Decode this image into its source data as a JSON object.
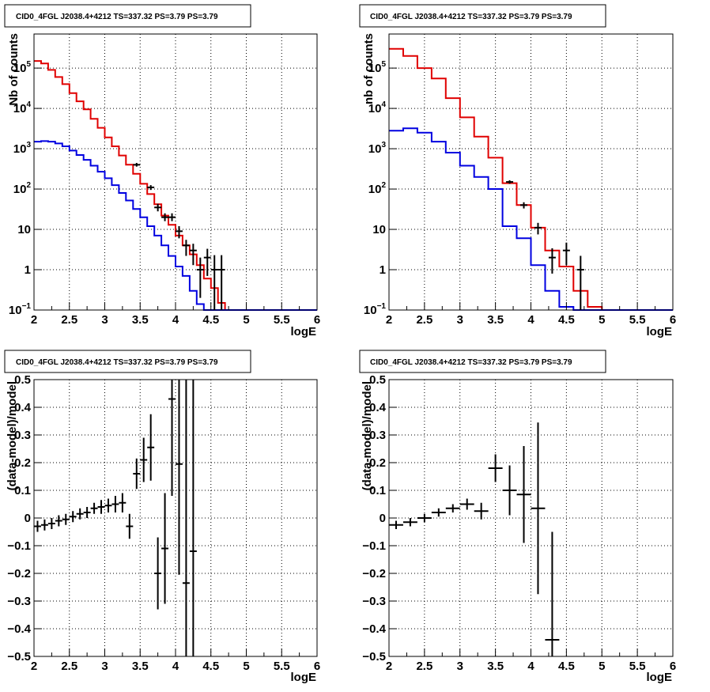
{
  "chart_data": [
    {
      "id": "counts-left",
      "type": "line",
      "title": "CID0_4FGL J2038.4+4212 TS=337.32 PS=3.79 PS=3.79",
      "xlabel": "logE",
      "ylabel": "Nb of counts",
      "xlim": [
        2,
        6
      ],
      "ylim": [
        0.1,
        700000
      ],
      "ylog": true,
      "grid": true,
      "x_ticks": [
        "2",
        "2.5",
        "3",
        "3.5",
        "4",
        "4.5",
        "5",
        "5.5",
        "6"
      ],
      "y_ticks": [
        {
          "v": 0.1,
          "b": "10",
          "e": "−1"
        },
        {
          "v": 1,
          "b": "1",
          "e": ""
        },
        {
          "v": 10,
          "b": "10",
          "e": ""
        },
        {
          "v": 100,
          "b": "10",
          "e": "2"
        },
        {
          "v": 1000,
          "b": "10",
          "e": "3"
        },
        {
          "v": 10000,
          "b": "10",
          "e": "4"
        },
        {
          "v": 100000,
          "b": "10",
          "e": "5"
        }
      ],
      "bin_edges": [
        2.0,
        2.1,
        2.2,
        2.3,
        2.4,
        2.5,
        2.6,
        2.7,
        2.8,
        2.9,
        3.0,
        3.1,
        3.2,
        3.3,
        3.4,
        3.5,
        3.6,
        3.7,
        3.8,
        3.9,
        4.0,
        4.1,
        4.2,
        4.3,
        4.4,
        4.5,
        4.6,
        4.7,
        4.8,
        4.9,
        5.0,
        5.1,
        5.2,
        5.3,
        5.4,
        5.5,
        5.6,
        5.7,
        5.8,
        5.9,
        6.0
      ],
      "series": [
        {
          "color": "#e00000",
          "values": [
            150000,
            130000,
            90000,
            60000,
            40000,
            24000,
            15000,
            9500,
            5500,
            3300,
            1900,
            1150,
            680,
            400,
            240,
            135,
            75,
            42,
            22,
            13,
            7,
            4,
            2.4,
            1.3,
            0.6,
            0.35,
            0.15,
            0.05,
            0.05,
            0.05,
            0.05,
            0.05,
            0.05,
            0.05,
            0.05,
            0.05,
            0.05,
            0.05,
            0.05,
            0.05
          ]
        },
        {
          "color": "#0000e0",
          "values": [
            1500,
            1550,
            1500,
            1350,
            1150,
            900,
            700,
            530,
            380,
            270,
            185,
            125,
            80,
            52,
            32,
            20,
            12,
            7,
            4,
            2.2,
            1.2,
            0.7,
            0.3,
            0.14,
            0.05,
            0.05,
            0.05,
            0.05,
            0.05,
            0.05,
            0.05,
            0.05,
            0.05,
            0.05,
            0.05,
            0.05,
            0.05,
            0.05,
            0.05,
            0.05
          ]
        }
      ],
      "points": [
        {
          "x": 3.45,
          "y": 400,
          "lo": 360,
          "hi": 445
        },
        {
          "x": 3.65,
          "y": 110,
          "lo": 95,
          "hi": 125
        },
        {
          "x": 3.75,
          "y": 35,
          "lo": 28,
          "hi": 43
        },
        {
          "x": 3.85,
          "y": 20,
          "lo": 16,
          "hi": 25
        },
        {
          "x": 3.95,
          "y": 20,
          "lo": 16,
          "hi": 25
        },
        {
          "x": 4.05,
          "y": 9,
          "lo": 6,
          "hi": 12
        },
        {
          "x": 4.15,
          "y": 4,
          "lo": 2.2,
          "hi": 5.5
        },
        {
          "x": 4.25,
          "y": 3,
          "lo": 1.3,
          "hi": 4.4
        },
        {
          "x": 4.35,
          "y": 1,
          "lo": 0.2,
          "hi": 2
        },
        {
          "x": 4.45,
          "y": 2,
          "lo": 0.7,
          "hi": 3.3
        },
        {
          "x": 4.55,
          "y": 1,
          "lo": 0.1,
          "hi": 2.3
        },
        {
          "x": 4.65,
          "y": 1,
          "lo": 0.1,
          "hi": 2.3
        }
      ]
    },
    {
      "id": "counts-right",
      "type": "line",
      "title": "CID0_4FGL J2038.4+4212 TS=337.32 PS=3.79 PS=3.79",
      "xlabel": "logE",
      "ylabel": "nb of counts",
      "xlim": [
        2,
        6
      ],
      "ylim": [
        0.1,
        700000
      ],
      "ylog": true,
      "grid": true,
      "x_ticks": [
        "2",
        "2.5",
        "3",
        "3.5",
        "4",
        "4.5",
        "5",
        "5.5",
        "6"
      ],
      "y_ticks": [
        {
          "v": 0.1,
          "b": "10",
          "e": "−1"
        },
        {
          "v": 1,
          "b": "1",
          "e": ""
        },
        {
          "v": 10,
          "b": "10",
          "e": ""
        },
        {
          "v": 100,
          "b": "10",
          "e": "2"
        },
        {
          "v": 1000,
          "b": "10",
          "e": "3"
        },
        {
          "v": 10000,
          "b": "10",
          "e": "4"
        },
        {
          "v": 100000,
          "b": "10",
          "e": "5"
        }
      ],
      "bin_edges": [
        2.0,
        2.2,
        2.4,
        2.6,
        2.8,
        3.0,
        3.2,
        3.4,
        3.6,
        3.8,
        4.0,
        4.2,
        4.4,
        4.6,
        4.8,
        5.0,
        5.2,
        5.4,
        5.6,
        5.8,
        6.0
      ],
      "series": [
        {
          "color": "#e00000",
          "values": [
            300000,
            200000,
            100000,
            55000,
            18000,
            6000,
            2000,
            600,
            140,
            40,
            11,
            3,
            1.2,
            0.3,
            0.12,
            0.05,
            0.05,
            0.05,
            0.05,
            0.05
          ]
        },
        {
          "color": "#0000e0",
          "values": [
            2800,
            3200,
            2500,
            1500,
            800,
            380,
            200,
            100,
            12,
            6,
            1.3,
            0.3,
            0.12,
            0.05,
            0.05,
            0.05,
            0.05,
            0.05,
            0.05,
            0.05
          ]
        }
      ],
      "points": [
        {
          "x": 3.7,
          "y": 150,
          "lo": 135,
          "hi": 165
        },
        {
          "x": 3.9,
          "y": 40,
          "lo": 33,
          "hi": 47
        },
        {
          "x": 4.1,
          "y": 11,
          "lo": 7.5,
          "hi": 14.5
        },
        {
          "x": 4.3,
          "y": 2,
          "lo": 0.8,
          "hi": 3.4
        },
        {
          "x": 4.5,
          "y": 3,
          "lo": 1.3,
          "hi": 4.7
        },
        {
          "x": 4.7,
          "y": 1,
          "lo": 0.1,
          "hi": 2.2
        }
      ]
    },
    {
      "id": "resid-left",
      "type": "scatter",
      "title": "CID0_4FGL J2038.4+4212 TS=337.32 PS=3.79 PS=3.79",
      "xlabel": "logE",
      "ylabel": "(data-model)/model",
      "xlim": [
        2,
        6
      ],
      "ylim": [
        -0.5,
        0.5
      ],
      "grid": true,
      "x_ticks": [
        "2",
        "2.5",
        "3",
        "3.5",
        "4",
        "4.5",
        "5",
        "5.5",
        "6"
      ],
      "y_ticks": [
        "−0.5",
        "−0.4",
        "−0.3",
        "−0.2",
        "−0.1",
        "0",
        "0.1",
        "0.2",
        "0.3",
        "0.4",
        "0.5"
      ],
      "half_width": 0.05,
      "points": [
        {
          "x": 2.05,
          "y": -0.03,
          "err": 0.02
        },
        {
          "x": 2.15,
          "y": -0.025,
          "err": 0.02
        },
        {
          "x": 2.25,
          "y": -0.02,
          "err": 0.02
        },
        {
          "x": 2.35,
          "y": -0.01,
          "err": 0.02
        },
        {
          "x": 2.45,
          "y": -0.005,
          "err": 0.02
        },
        {
          "x": 2.55,
          "y": 0.005,
          "err": 0.02
        },
        {
          "x": 2.65,
          "y": 0.015,
          "err": 0.02
        },
        {
          "x": 2.75,
          "y": 0.02,
          "err": 0.02
        },
        {
          "x": 2.85,
          "y": 0.035,
          "err": 0.02
        },
        {
          "x": 2.95,
          "y": 0.04,
          "err": 0.025
        },
        {
          "x": 3.05,
          "y": 0.045,
          "err": 0.025
        },
        {
          "x": 3.15,
          "y": 0.05,
          "err": 0.03
        },
        {
          "x": 3.25,
          "y": 0.055,
          "err": 0.035
        },
        {
          "x": 3.35,
          "y": -0.03,
          "err": 0.045
        },
        {
          "x": 3.45,
          "y": 0.16,
          "err": 0.055
        },
        {
          "x": 3.55,
          "y": 0.21,
          "err": 0.08
        },
        {
          "x": 3.65,
          "y": 0.255,
          "err": 0.12
        },
        {
          "x": 3.75,
          "y": -0.2,
          "err": 0.13
        },
        {
          "x": 3.85,
          "y": -0.11,
          "err": 0.2
        },
        {
          "x": 3.95,
          "y": 0.43,
          "err": 0.35
        },
        {
          "x": 4.05,
          "y": 0.195,
          "err": 0.4
        },
        {
          "x": 4.15,
          "y": -0.235,
          "err": 0.9
        },
        {
          "x": 4.25,
          "y": -0.12,
          "err": 1.0
        }
      ]
    },
    {
      "id": "resid-right",
      "type": "scatter",
      "title": "CID0_4FGL J2038.4+4212 TS=337.32 PS=3.79 PS=3.79",
      "xlabel": "logE",
      "ylabel": "(data-model)/model",
      "xlim": [
        2,
        6
      ],
      "ylim": [
        -0.5,
        0.5
      ],
      "grid": true,
      "x_ticks": [
        "2",
        "2.5",
        "3",
        "3.5",
        "4",
        "4.5",
        "5",
        "5.5",
        "6"
      ],
      "y_ticks": [
        "−0.5",
        "−0.4",
        "−0.3",
        "−0.2",
        "−0.1",
        "0",
        "0.1",
        "0.2",
        "0.3",
        "0.4",
        "0.5"
      ],
      "half_width": 0.1,
      "points": [
        {
          "x": 2.1,
          "y": -0.025,
          "err": 0.015
        },
        {
          "x": 2.3,
          "y": -0.015,
          "err": 0.015
        },
        {
          "x": 2.5,
          "y": 0.0,
          "err": 0.015
        },
        {
          "x": 2.7,
          "y": 0.02,
          "err": 0.015
        },
        {
          "x": 2.9,
          "y": 0.035,
          "err": 0.015
        },
        {
          "x": 3.1,
          "y": 0.05,
          "err": 0.02
        },
        {
          "x": 3.3,
          "y": 0.025,
          "err": 0.03
        },
        {
          "x": 3.5,
          "y": 0.18,
          "err": 0.05
        },
        {
          "x": 3.7,
          "y": 0.1,
          "err": 0.09
        },
        {
          "x": 3.9,
          "y": 0.085,
          "err": 0.175
        },
        {
          "x": 4.1,
          "y": 0.035,
          "err": 0.31
        },
        {
          "x": 4.3,
          "y": -0.44,
          "err": 0.39
        }
      ]
    }
  ]
}
